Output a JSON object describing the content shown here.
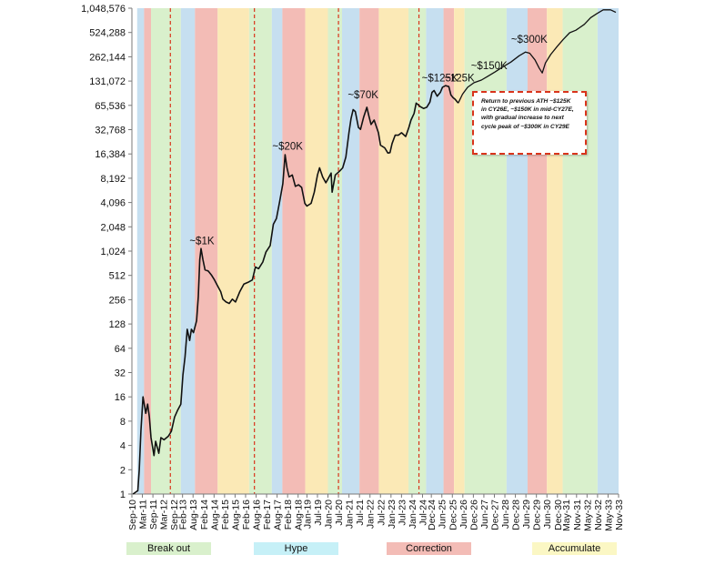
{
  "chart_data": {
    "type": "line",
    "y_scale": "log2",
    "y_ticks": [
      1,
      2,
      4,
      8,
      16,
      32,
      64,
      128,
      256,
      512,
      1024,
      2048,
      4096,
      8192,
      16384,
      32768,
      65536,
      131072,
      262144,
      524288,
      1048576
    ],
    "y_tick_labels": [
      "1",
      "2",
      "4",
      "8",
      "16",
      "32",
      "64",
      "128",
      "256",
      "512",
      "1,024",
      "2,048",
      "4,096",
      "8,192",
      "16,384",
      "32,768",
      "65,536",
      "131,072",
      "262,144",
      "524,288",
      "1,048,576"
    ],
    "ylim": [
      1,
      1048576
    ],
    "x_tick_labels": [
      "Sep-10",
      "Mar-11",
      "Sep-11",
      "Mar-12",
      "Sep-12",
      "Feb-13",
      "Aug-13",
      "Feb-14",
      "Aug-14",
      "Feb-15",
      "Aug-15",
      "Feb-16",
      "Aug-16",
      "Feb-17",
      "Aug-17",
      "Feb-18",
      "Aug-18",
      "Jan-19",
      "Jul-19",
      "Jan-20",
      "Jul-20",
      "Jan-21",
      "Jul-21",
      "Jan-22",
      "Jul-22",
      "Jan-23",
      "Jul-23",
      "Jan-24",
      "Jul-24",
      "Dec-24",
      "Jun-25",
      "Dec-25",
      "Jun-26",
      "Dec-26",
      "Jun-27",
      "Dec-27",
      "Jun-28",
      "Dec-28",
      "Jun-29",
      "Dec-29",
      "Jun-30",
      "Dec-30",
      "May-31",
      "Nov-31",
      "May-32",
      "Nov-32",
      "May-33",
      "Nov-33"
    ],
    "x_ticks_years": [
      2010.67,
      2011.17,
      2011.67,
      2012.17,
      2012.67,
      2013.08,
      2013.58,
      2014.08,
      2014.58,
      2015.08,
      2015.58,
      2016.08,
      2016.58,
      2017.08,
      2017.58,
      2018.08,
      2018.58,
      2019.0,
      2019.5,
      2020.0,
      2020.5,
      2021.0,
      2021.5,
      2022.0,
      2022.5,
      2023.0,
      2023.5,
      2024.0,
      2024.5,
      2024.92,
      2025.42,
      2025.92,
      2026.42,
      2026.92,
      2027.42,
      2027.92,
      2028.42,
      2028.92,
      2029.42,
      2029.92,
      2030.42,
      2030.92,
      2031.33,
      2031.83,
      2032.33,
      2032.83,
      2033.33,
      2033.83
    ],
    "xlim": [
      2010.67,
      2033.83
    ],
    "phase_colors": {
      "breakout": "#d9f0cc",
      "hype": "#c6dff0",
      "correction": "#f3bcb6",
      "accumulate": "#fbe9b6"
    },
    "phases": [
      {
        "type": "hype",
        "start": 2010.92,
        "end": 2011.25
      },
      {
        "type": "correction",
        "start": 2011.25,
        "end": 2011.58
      },
      {
        "type": "breakout",
        "start": 2011.58,
        "end": 2013.0
      },
      {
        "type": "hype",
        "start": 2013.0,
        "end": 2013.67
      },
      {
        "type": "correction",
        "start": 2013.67,
        "end": 2014.75
      },
      {
        "type": "accumulate",
        "start": 2014.75,
        "end": 2016.25
      },
      {
        "type": "breakout",
        "start": 2016.25,
        "end": 2017.33
      },
      {
        "type": "hype",
        "start": 2017.33,
        "end": 2017.83
      },
      {
        "type": "correction",
        "start": 2017.83,
        "end": 2018.92
      },
      {
        "type": "accumulate",
        "start": 2018.92,
        "end": 2020.0
      },
      {
        "type": "breakout",
        "start": 2020.0,
        "end": 2020.67
      },
      {
        "type": "hype",
        "start": 2020.67,
        "end": 2021.5
      },
      {
        "type": "correction",
        "start": 2021.5,
        "end": 2022.42
      },
      {
        "type": "accumulate",
        "start": 2022.42,
        "end": 2023.83
      },
      {
        "type": "breakout",
        "start": 2023.83,
        "end": 2024.67
      },
      {
        "type": "hype",
        "start": 2024.67,
        "end": 2025.5
      },
      {
        "type": "correction",
        "start": 2025.5,
        "end": 2026.0
      },
      {
        "type": "accumulate",
        "start": 2026.0,
        "end": 2026.5
      },
      {
        "type": "breakout",
        "start": 2026.5,
        "end": 2028.5
      },
      {
        "type": "hype",
        "start": 2028.5,
        "end": 2029.5
      },
      {
        "type": "correction",
        "start": 2029.5,
        "end": 2030.42
      },
      {
        "type": "accumulate",
        "start": 2030.42,
        "end": 2031.17
      },
      {
        "type": "breakout",
        "start": 2031.17,
        "end": 2032.83
      },
      {
        "type": "hype",
        "start": 2032.83,
        "end": 2033.83
      }
    ],
    "halving_lines": [
      2012.5,
      2016.5,
      2020.5,
      2024.33
    ],
    "series": [
      {
        "values": [
          [
            2010.72,
            1
          ],
          [
            2010.95,
            1.1
          ],
          [
            2011.02,
            2
          ],
          [
            2011.1,
            6
          ],
          [
            2011.2,
            16
          ],
          [
            2011.28,
            12
          ],
          [
            2011.33,
            10
          ],
          [
            2011.42,
            13
          ],
          [
            2011.5,
            9
          ],
          [
            2011.58,
            5
          ],
          [
            2011.72,
            3
          ],
          [
            2011.8,
            4.5
          ],
          [
            2011.95,
            3.2
          ],
          [
            2012.05,
            5
          ],
          [
            2012.2,
            4.7
          ],
          [
            2012.4,
            5.2
          ],
          [
            2012.55,
            6
          ],
          [
            2012.7,
            9
          ],
          [
            2012.85,
            11
          ],
          [
            2013.0,
            13
          ],
          [
            2013.1,
            30
          ],
          [
            2013.2,
            50
          ],
          [
            2013.3,
            110
          ],
          [
            2013.42,
            80
          ],
          [
            2013.5,
            110
          ],
          [
            2013.6,
            100
          ],
          [
            2013.75,
            140
          ],
          [
            2013.83,
            280
          ],
          [
            2013.9,
            800
          ],
          [
            2013.96,
            1100
          ],
          [
            2014.05,
            800
          ],
          [
            2014.15,
            600
          ],
          [
            2014.3,
            580
          ],
          [
            2014.45,
            520
          ],
          [
            2014.6,
            450
          ],
          [
            2014.75,
            380
          ],
          [
            2014.9,
            320
          ],
          [
            2015.0,
            260
          ],
          [
            2015.15,
            240
          ],
          [
            2015.3,
            230
          ],
          [
            2015.45,
            260
          ],
          [
            2015.6,
            240
          ],
          [
            2015.8,
            320
          ],
          [
            2016.0,
            400
          ],
          [
            2016.2,
            420
          ],
          [
            2016.4,
            450
          ],
          [
            2016.55,
            650
          ],
          [
            2016.7,
            620
          ],
          [
            2016.9,
            750
          ],
          [
            2017.05,
            1000
          ],
          [
            2017.25,
            1200
          ],
          [
            2017.4,
            2200
          ],
          [
            2017.55,
            2600
          ],
          [
            2017.7,
            4200
          ],
          [
            2017.85,
            7000
          ],
          [
            2017.96,
            16000
          ],
          [
            2018.05,
            11000
          ],
          [
            2018.15,
            8500
          ],
          [
            2018.3,
            9000
          ],
          [
            2018.45,
            6500
          ],
          [
            2018.6,
            6800
          ],
          [
            2018.75,
            6300
          ],
          [
            2018.9,
            4000
          ],
          [
            2019.0,
            3700
          ],
          [
            2019.2,
            4000
          ],
          [
            2019.35,
            5500
          ],
          [
            2019.5,
            9000
          ],
          [
            2019.6,
            11000
          ],
          [
            2019.75,
            8500
          ],
          [
            2019.9,
            7200
          ],
          [
            2020.0,
            8000
          ],
          [
            2020.15,
            9500
          ],
          [
            2020.2,
            5500
          ],
          [
            2020.35,
            9000
          ],
          [
            2020.55,
            10000
          ],
          [
            2020.7,
            11000
          ],
          [
            2020.85,
            15000
          ],
          [
            2021.0,
            30000
          ],
          [
            2021.1,
            45000
          ],
          [
            2021.2,
            58000
          ],
          [
            2021.3,
            55000
          ],
          [
            2021.45,
            35000
          ],
          [
            2021.55,
            33000
          ],
          [
            2021.7,
            47000
          ],
          [
            2021.85,
            62000
          ],
          [
            2021.95,
            48000
          ],
          [
            2022.05,
            38000
          ],
          [
            2022.2,
            43000
          ],
          [
            2022.4,
            30000
          ],
          [
            2022.5,
            21000
          ],
          [
            2022.7,
            19500
          ],
          [
            2022.85,
            16800
          ],
          [
            2022.95,
            17000
          ],
          [
            2023.05,
            22000
          ],
          [
            2023.2,
            28000
          ],
          [
            2023.35,
            28000
          ],
          [
            2023.5,
            30000
          ],
          [
            2023.7,
            27000
          ],
          [
            2023.85,
            35000
          ],
          [
            2023.95,
            43000
          ],
          [
            2024.1,
            52000
          ],
          [
            2024.2,
            70000
          ],
          [
            2024.4,
            63000
          ],
          [
            2024.55,
            60000
          ],
          [
            2024.7,
            62000
          ],
          [
            2024.85,
            72000
          ],
          [
            2024.95,
            95000
          ],
          [
            2025.05,
            100000
          ],
          [
            2025.2,
            85000
          ],
          [
            2025.35,
            95000
          ],
          [
            2025.45,
            110000
          ],
          [
            2025.6,
            115000
          ],
          [
            2025.75,
            112000
          ],
          [
            2025.85,
            88000
          ],
          [
            2025.95,
            82000
          ],
          [
            2026.05,
            78000
          ],
          [
            2026.2,
            70000
          ]
        ]
      },
      {
        "values": [
          [
            2026.2,
            70000
          ],
          [
            2026.4,
            90000
          ],
          [
            2026.65,
            110000
          ],
          [
            2026.95,
            125000
          ],
          [
            2027.3,
            135000
          ],
          [
            2027.6,
            150000
          ],
          [
            2027.95,
            170000
          ],
          [
            2028.3,
            195000
          ],
          [
            2028.7,
            225000
          ],
          [
            2029.1,
            270000
          ],
          [
            2029.4,
            300000
          ],
          [
            2029.6,
            290000
          ],
          [
            2029.85,
            240000
          ],
          [
            2030.05,
            190000
          ],
          [
            2030.2,
            165000
          ],
          [
            2030.35,
            220000
          ],
          [
            2030.6,
            280000
          ],
          [
            2030.9,
            350000
          ],
          [
            2031.2,
            430000
          ],
          [
            2031.5,
            520000
          ],
          [
            2031.8,
            560000
          ],
          [
            2032.2,
            660000
          ],
          [
            2032.5,
            800000
          ],
          [
            2032.8,
            900000
          ],
          [
            2033.1,
            1000000
          ],
          [
            2033.45,
            1000000
          ],
          [
            2033.7,
            930000
          ]
        ]
      }
    ],
    "annotations": [
      {
        "text": "~$1K",
        "x": 2014.0,
        "y": 1250
      },
      {
        "text": "~$20K",
        "x": 2018.08,
        "y": 18500
      },
      {
        "text": "~$70K",
        "x": 2021.67,
        "y": 80000
      },
      {
        "text": "~$125K",
        "x": 2025.33,
        "y": 130000
      },
      {
        "text": "~125K",
        "x": 2026.25,
        "y": 130000
      },
      {
        "text": "~$150K",
        "x": 2027.67,
        "y": 185000
      },
      {
        "text": "~$300K",
        "x": 2029.58,
        "y": 390000
      }
    ],
    "callout": "Return to previous ATH ~$125K in CY26E, ~$150K in mid-CY27E, with gradual increase to next cycle peak of ~$300K in CY29E",
    "legend": [
      {
        "label": "Break out",
        "color": "#d9f0cc"
      },
      {
        "label": "Hype",
        "color": "#c6f0f7"
      },
      {
        "label": "Correction",
        "color": "#f3bcb6"
      },
      {
        "label": "Accumulate",
        "color": "#fbf7c4"
      }
    ]
  }
}
